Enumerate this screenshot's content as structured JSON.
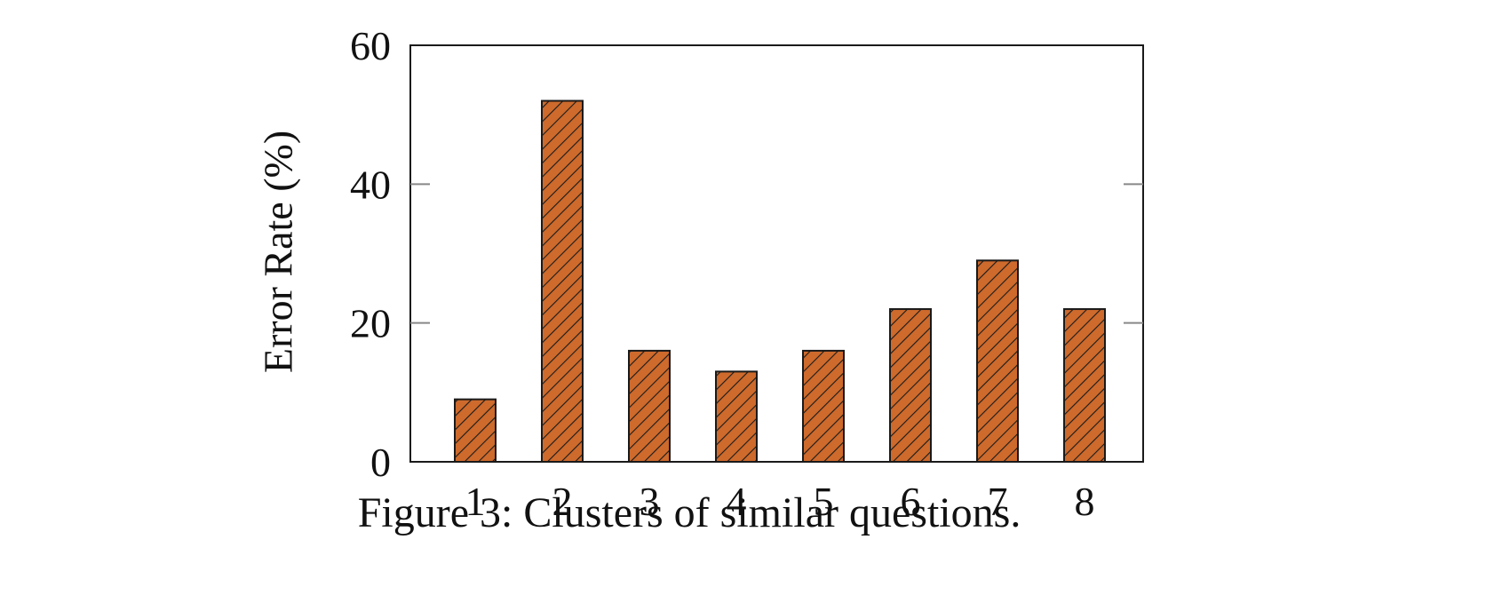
{
  "caption": "Figure 3: Clusters of similar questions.",
  "colors": {
    "bar_fill": "#cd6a2c",
    "hatch": "#1a1a1a",
    "axis": "#1a1a1a",
    "tick": "#888888"
  },
  "chart_data": {
    "type": "bar",
    "categories": [
      "1",
      "2",
      "3",
      "4",
      "5",
      "6",
      "7",
      "8"
    ],
    "values": [
      9,
      52,
      16,
      13,
      16,
      22,
      29,
      22
    ],
    "xlabel": "",
    "ylabel": "Error Rate (%)",
    "ylim": [
      0,
      60
    ],
    "yticks": [
      0,
      20,
      40,
      60
    ],
    "grid": false,
    "bar_pattern": "diagonal-hatch"
  }
}
